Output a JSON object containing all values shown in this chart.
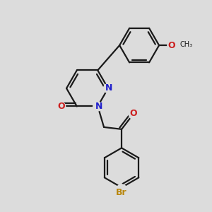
{
  "bg_color": "#dcdcdc",
  "bond_color": "#1a1a1a",
  "n_color": "#2020cc",
  "o_color": "#cc2020",
  "br_color": "#b8860b",
  "lw": 1.6,
  "figsize": [
    3.0,
    3.0
  ],
  "dpi": 100,
  "xlim": [
    0,
    10
  ],
  "ylim": [
    0,
    10
  ]
}
